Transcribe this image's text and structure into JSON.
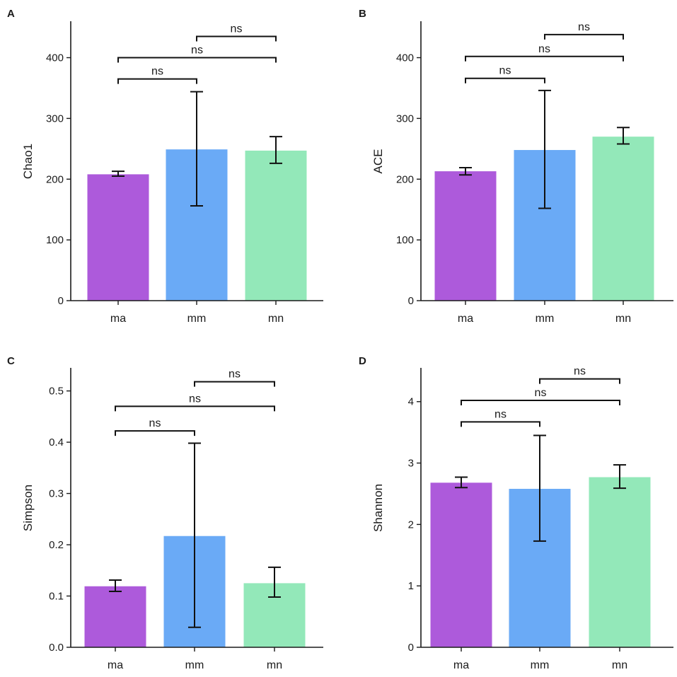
{
  "colors": {
    "ma": "#ad5adb",
    "mm": "#6aaaf6",
    "mn": "#93e8b9"
  },
  "chart_data": [
    {
      "type": "bar",
      "panel": "A",
      "ylabel": "Chao1",
      "categories": [
        "ma",
        "mm",
        "mn"
      ],
      "values": [
        208,
        249,
        247
      ],
      "error_low": [
        205,
        156,
        226
      ],
      "error_high": [
        213,
        344,
        270
      ],
      "ylim": [
        0,
        460
      ],
      "yticks": [
        0,
        100,
        200,
        300,
        400
      ],
      "tick_labels": [
        "0",
        "100",
        "200",
        "300",
        "400"
      ],
      "significance": [
        {
          "from": 0,
          "to": 1,
          "y": 365,
          "label": "ns"
        },
        {
          "from": 0,
          "to": 2,
          "y": 400,
          "label": "ns"
        },
        {
          "from": 1,
          "to": 2,
          "y": 435,
          "label": "ns"
        }
      ]
    },
    {
      "type": "bar",
      "panel": "B",
      "ylabel": "ACE",
      "categories": [
        "ma",
        "mm",
        "mn"
      ],
      "values": [
        213,
        248,
        270
      ],
      "error_low": [
        207,
        152,
        258
      ],
      "error_high": [
        219,
        346,
        285
      ],
      "ylim": [
        0,
        460
      ],
      "yticks": [
        0,
        100,
        200,
        300,
        400
      ],
      "tick_labels": [
        "0",
        "100",
        "200",
        "300",
        "400"
      ],
      "significance": [
        {
          "from": 0,
          "to": 1,
          "y": 366,
          "label": "ns"
        },
        {
          "from": 0,
          "to": 2,
          "y": 402,
          "label": "ns"
        },
        {
          "from": 1,
          "to": 2,
          "y": 438,
          "label": "ns"
        }
      ]
    },
    {
      "type": "bar",
      "panel": "C",
      "ylabel": "Simpson",
      "categories": [
        "ma",
        "mm",
        "mn"
      ],
      "values": [
        0.119,
        0.217,
        0.125
      ],
      "error_low": [
        0.109,
        0.039,
        0.098
      ],
      "error_high": [
        0.131,
        0.398,
        0.156
      ],
      "ylim": [
        0,
        0.545
      ],
      "yticks": [
        0,
        0.1,
        0.2,
        0.3,
        0.4,
        0.5
      ],
      "tick_labels": [
        "0.0",
        "0.1",
        "0.2",
        "0.3",
        "0.4",
        "0.5"
      ],
      "significance": [
        {
          "from": 0,
          "to": 1,
          "y": 0.422,
          "label": "ns"
        },
        {
          "from": 0,
          "to": 2,
          "y": 0.47,
          "label": "ns"
        },
        {
          "from": 1,
          "to": 2,
          "y": 0.518,
          "label": "ns"
        }
      ]
    },
    {
      "type": "bar",
      "panel": "D",
      "ylabel": "Shannon",
      "categories": [
        "ma",
        "mm",
        "mn"
      ],
      "values": [
        2.68,
        2.58,
        2.77
      ],
      "error_low": [
        2.6,
        1.73,
        2.59
      ],
      "error_high": [
        2.77,
        3.45,
        2.97
      ],
      "ylim": [
        0,
        4.55
      ],
      "yticks": [
        0,
        1,
        2,
        3,
        4
      ],
      "tick_labels": [
        "0",
        "1",
        "2",
        "3",
        "4"
      ],
      "significance": [
        {
          "from": 0,
          "to": 1,
          "y": 3.67,
          "label": "ns"
        },
        {
          "from": 0,
          "to": 2,
          "y": 4.02,
          "label": "ns"
        },
        {
          "from": 1,
          "to": 2,
          "y": 4.37,
          "label": "ns"
        }
      ]
    }
  ]
}
